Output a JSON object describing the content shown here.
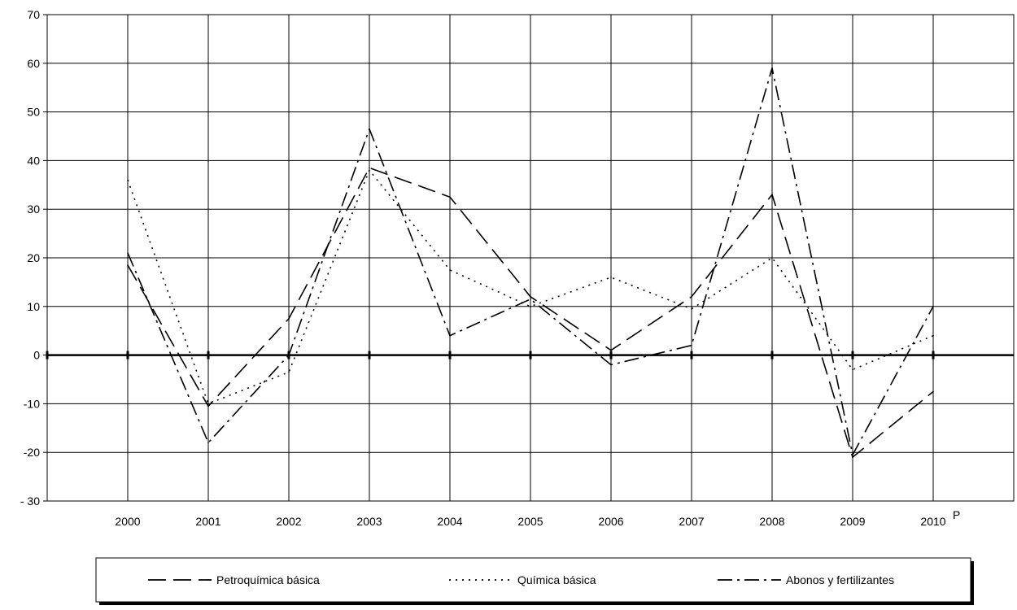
{
  "chart_data": {
    "type": "line",
    "title": "",
    "xlabel": "",
    "ylabel": "",
    "categories": [
      "2000",
      "2001",
      "2002",
      "2003",
      "2004",
      "2005",
      "2006",
      "2007",
      "2008",
      "2009",
      "2010"
    ],
    "category_superscript": {
      "2010": "P"
    },
    "ylim": [
      -30,
      70
    ],
    "yticks": [
      -30,
      -20,
      -10,
      0,
      10,
      20,
      30,
      40,
      50,
      60,
      70
    ],
    "ytick_labels": [
      "- 30",
      "-20",
      "-10",
      "0",
      "10",
      "20",
      "30",
      "40",
      "50",
      "60",
      "70"
    ],
    "grid": true,
    "legend_position": "bottom",
    "series": [
      {
        "name": "Petroquímica básica",
        "dash": "long-dash",
        "values": [
          18.5,
          -10.5,
          7.5,
          38.5,
          32.5,
          12.0,
          1.0,
          12.0,
          33.0,
          -21.0,
          -7.5
        ]
      },
      {
        "name": "Química básica",
        "dash": "dot",
        "values": [
          36.0,
          -10.0,
          -3.5,
          38.0,
          17.5,
          10.0,
          16.0,
          9.5,
          20.0,
          -3.0,
          4.0
        ]
      },
      {
        "name": "Abonos y fertilizantes",
        "dash": "dash-dot",
        "values": [
          21.0,
          -18.0,
          0.0,
          46.5,
          4.0,
          11.5,
          -2.0,
          2.0,
          59.0,
          -20.5,
          10.0
        ]
      }
    ]
  },
  "colors": {
    "line": "#000000",
    "grid": "#000000",
    "background": "#ffffff"
  }
}
